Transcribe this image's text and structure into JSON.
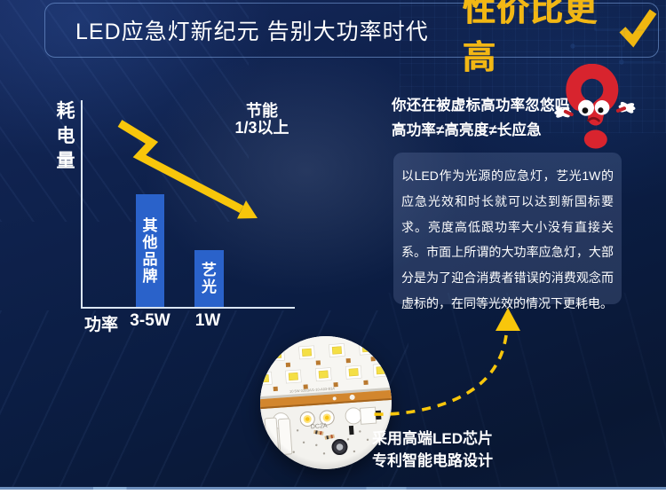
{
  "header": {
    "title": "LED应急灯新纪元 告别大功率时代",
    "highlight": "性价比更高",
    "check_icon": "check-mark",
    "highlight_color": "#f2b714"
  },
  "chart_data": {
    "type": "bar",
    "title": "",
    "ylabel": "耗电量",
    "xlabel": "功率",
    "categories": [
      "3-5W",
      "1W"
    ],
    "bars": [
      {
        "brand": "其他品牌",
        "category": "3-5W",
        "value": 2
      },
      {
        "brand": "艺光",
        "category": "1W",
        "value": 1
      }
    ],
    "value_unit": "relative-consumption",
    "annotation_line1": "节能",
    "annotation_line2": "1/3以上",
    "bar_color": "#2a62ca",
    "trend": "decreasing",
    "grid": "off",
    "legend": "none"
  },
  "question": {
    "line1": "你还在被虚标高功率忽悠吗",
    "line2": "高功率≠高亮度≠长应急",
    "mascot_icon": "red-question-mark-mascot"
  },
  "info_box": {
    "text": "以LED作为光源的应急灯，艺光1W的应急光效和时长就可以达到新国标要求。亮度高低跟功率大小没有直接关系。市面上所谓的大功率应急灯，大部分是为了迎合消费者错误的消费观念而虚标的，在同等光效的情况下更耗电。"
  },
  "pcb": {
    "caption_line1": "采用高端LED芯片",
    "caption_line2": "专利智能电路设计",
    "board_text": "DC2A",
    "image_icon": "led-pcb-photo"
  },
  "colors": {
    "background_navy": "#0d2049",
    "accent_yellow": "#f8c60b",
    "header_yellow": "#f2b714",
    "bar_blue": "#2a62ca",
    "mascot_red": "#d8242e",
    "divider_blue": "#7d9fc9",
    "footer_white": "#ffffff"
  }
}
